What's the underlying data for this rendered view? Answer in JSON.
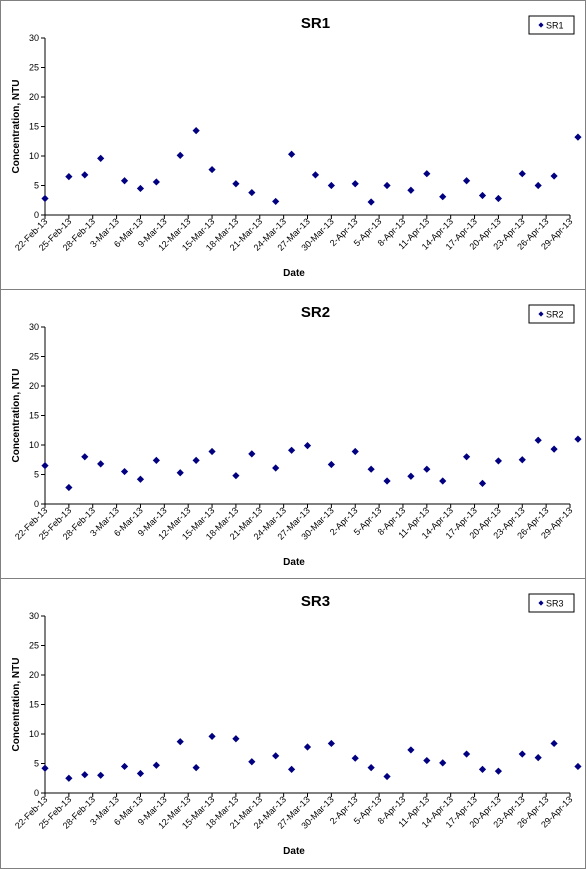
{
  "chart_data": [
    {
      "type": "scatter",
      "title": "SR1",
      "xlabel": "Date",
      "ylabel": "Concentration, NTU",
      "ylim": [
        0,
        30
      ],
      "yticks": [
        "0",
        "5",
        "10",
        "15",
        "20",
        "25",
        "30"
      ],
      "xticks": [
        "22-Feb-13",
        "25-Feb-13",
        "28-Feb-13",
        "3-Mar-13",
        "6-Mar-13",
        "9-Mar-13",
        "12-Mar-13",
        "15-Mar-13",
        "18-Mar-13",
        "21-Mar-13",
        "24-Mar-13",
        "27-Mar-13",
        "30-Mar-13",
        "2-Apr-13",
        "5-Apr-13",
        "8-Apr-13",
        "11-Apr-13",
        "14-Apr-13",
        "17-Apr-13",
        "20-Apr-13",
        "23-Apr-13",
        "26-Apr-13",
        "29-Apr-13"
      ],
      "legend": "top-right",
      "grid": false,
      "series": [
        {
          "name": "SR1",
          "color": "#000080",
          "x": [
            "22-Feb-13",
            "25-Feb-13",
            "27-Feb-13",
            "1-Mar-13",
            "4-Mar-13",
            "6-Mar-13",
            "8-Mar-13",
            "11-Mar-13",
            "13-Mar-13",
            "15-Mar-13",
            "18-Mar-13",
            "20-Mar-13",
            "23-Mar-13",
            "25-Mar-13",
            "28-Mar-13",
            "30-Mar-13",
            "2-Apr-13",
            "4-Apr-13",
            "6-Apr-13",
            "9-Apr-13",
            "11-Apr-13",
            "13-Apr-13",
            "16-Apr-13",
            "18-Apr-13",
            "20-Apr-13",
            "23-Apr-13",
            "25-Apr-13",
            "27-Apr-13",
            "30-Apr-13"
          ],
          "y": [
            2.8,
            6.5,
            6.8,
            9.6,
            5.8,
            4.5,
            5.6,
            10.1,
            14.3,
            7.7,
            5.3,
            3.8,
            2.3,
            10.3,
            6.8,
            5.0,
            5.3,
            2.2,
            5.0,
            4.2,
            7.0,
            3.1,
            5.8,
            3.3,
            2.8,
            7.0,
            5.0,
            6.6,
            13.2
          ]
        }
      ]
    },
    {
      "type": "scatter",
      "title": "SR2",
      "xlabel": "Date",
      "ylabel": "Concentration, NTU",
      "ylim": [
        0,
        30
      ],
      "yticks": [
        "0",
        "5",
        "10",
        "15",
        "20",
        "25",
        "30"
      ],
      "xticks": [
        "22-Feb-13",
        "25-Feb-13",
        "28-Feb-13",
        "3-Mar-13",
        "6-Mar-13",
        "9-Mar-13",
        "12-Mar-13",
        "15-Mar-13",
        "18-Mar-13",
        "21-Mar-13",
        "24-Mar-13",
        "27-Mar-13",
        "30-Mar-13",
        "2-Apr-13",
        "5-Apr-13",
        "8-Apr-13",
        "11-Apr-13",
        "14-Apr-13",
        "17-Apr-13",
        "20-Apr-13",
        "23-Apr-13",
        "26-Apr-13",
        "29-Apr-13"
      ],
      "legend": "top-right",
      "grid": false,
      "series": [
        {
          "name": "SR2",
          "color": "#000080",
          "x": [
            "22-Feb-13",
            "25-Feb-13",
            "27-Feb-13",
            "1-Mar-13",
            "4-Mar-13",
            "6-Mar-13",
            "8-Mar-13",
            "11-Mar-13",
            "13-Mar-13",
            "15-Mar-13",
            "18-Mar-13",
            "20-Mar-13",
            "23-Mar-13",
            "25-Mar-13",
            "27-Mar-13",
            "30-Mar-13",
            "2-Apr-13",
            "4-Apr-13",
            "6-Apr-13",
            "9-Apr-13",
            "11-Apr-13",
            "13-Apr-13",
            "16-Apr-13",
            "18-Apr-13",
            "20-Apr-13",
            "23-Apr-13",
            "25-Apr-13",
            "27-Apr-13",
            "30-Apr-13"
          ],
          "y": [
            6.5,
            2.8,
            8.0,
            6.8,
            5.5,
            4.2,
            7.4,
            5.3,
            7.4,
            8.9,
            4.8,
            8.5,
            6.1,
            9.1,
            9.9,
            6.7,
            8.9,
            5.9,
            3.9,
            4.7,
            5.9,
            3.9,
            8.0,
            3.5,
            7.3,
            7.5,
            10.8,
            9.3,
            11.0
          ]
        }
      ]
    },
    {
      "type": "scatter",
      "title": "SR3",
      "xlabel": "Date",
      "ylabel": "Concentration, NTU",
      "ylim": [
        0,
        30
      ],
      "yticks": [
        "0",
        "5",
        "10",
        "15",
        "20",
        "25",
        "30"
      ],
      "xticks": [
        "22-Feb-13",
        "25-Feb-13",
        "28-Feb-13",
        "3-Mar-13",
        "6-Mar-13",
        "9-Mar-13",
        "12-Mar-13",
        "15-Mar-13",
        "18-Mar-13",
        "21-Mar-13",
        "24-Mar-13",
        "27-Mar-13",
        "30-Mar-13",
        "2-Apr-13",
        "5-Apr-13",
        "8-Apr-13",
        "11-Apr-13",
        "14-Apr-13",
        "17-Apr-13",
        "20-Apr-13",
        "23-Apr-13",
        "26-Apr-13",
        "29-Apr-13"
      ],
      "legend": "top-right",
      "grid": false,
      "series": [
        {
          "name": "SR3",
          "color": "#000080",
          "x": [
            "22-Feb-13",
            "25-Feb-13",
            "27-Feb-13",
            "1-Mar-13",
            "4-Mar-13",
            "6-Mar-13",
            "8-Mar-13",
            "11-Mar-13",
            "13-Mar-13",
            "15-Mar-13",
            "18-Mar-13",
            "20-Mar-13",
            "23-Mar-13",
            "25-Mar-13",
            "27-Mar-13",
            "30-Mar-13",
            "2-Apr-13",
            "4-Apr-13",
            "6-Apr-13",
            "9-Apr-13",
            "11-Apr-13",
            "13-Apr-13",
            "16-Apr-13",
            "18-Apr-13",
            "20-Apr-13",
            "23-Apr-13",
            "25-Apr-13",
            "27-Apr-13",
            "30-Apr-13"
          ],
          "y": [
            4.2,
            2.5,
            3.1,
            3.0,
            4.5,
            3.3,
            4.7,
            8.7,
            4.3,
            9.6,
            9.2,
            5.3,
            6.3,
            4.0,
            7.8,
            8.4,
            5.9,
            4.3,
            2.8,
            7.3,
            5.5,
            5.1,
            6.6,
            4.0,
            3.7,
            6.6,
            6.0,
            8.4,
            4.5
          ]
        }
      ]
    }
  ]
}
